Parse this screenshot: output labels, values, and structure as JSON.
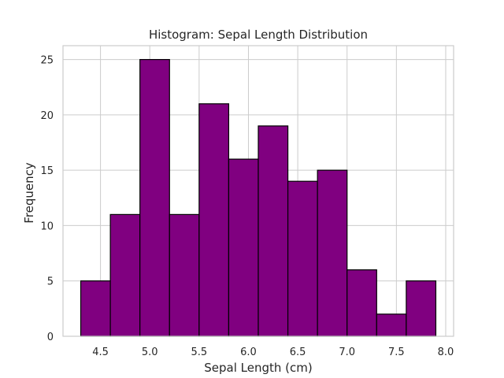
{
  "chart_data": {
    "type": "bar",
    "title": "Histogram: Sepal Length Distribution",
    "xlabel": "Sepal Length (cm)",
    "ylabel": "Frequency",
    "bin_edges": [
      4.3,
      4.6,
      4.9,
      5.2,
      5.5,
      5.8,
      6.1,
      6.4,
      6.7,
      7.0,
      7.3,
      7.6,
      7.9
    ],
    "values": [
      5,
      11,
      25,
      11,
      21,
      16,
      19,
      14,
      15,
      6,
      2,
      5
    ],
    "xlim": [
      4.12,
      8.08
    ],
    "ylim": [
      0,
      26.25
    ],
    "xticks": [
      4.5,
      5.0,
      5.5,
      6.0,
      6.5,
      7.0,
      7.5,
      8.0
    ],
    "xtick_labels": [
      "4.5",
      "5.0",
      "5.5",
      "6.0",
      "6.5",
      "7.0",
      "7.5",
      "8.0"
    ],
    "yticks": [
      0,
      5,
      10,
      15,
      20,
      25
    ],
    "ytick_labels": [
      "0",
      "5",
      "10",
      "15",
      "20",
      "25"
    ],
    "grid": true,
    "colors": {
      "bar_fill": "#800080",
      "bar_edge": "#000000",
      "grid": "#cccccc",
      "spine": "#cccccc"
    }
  }
}
